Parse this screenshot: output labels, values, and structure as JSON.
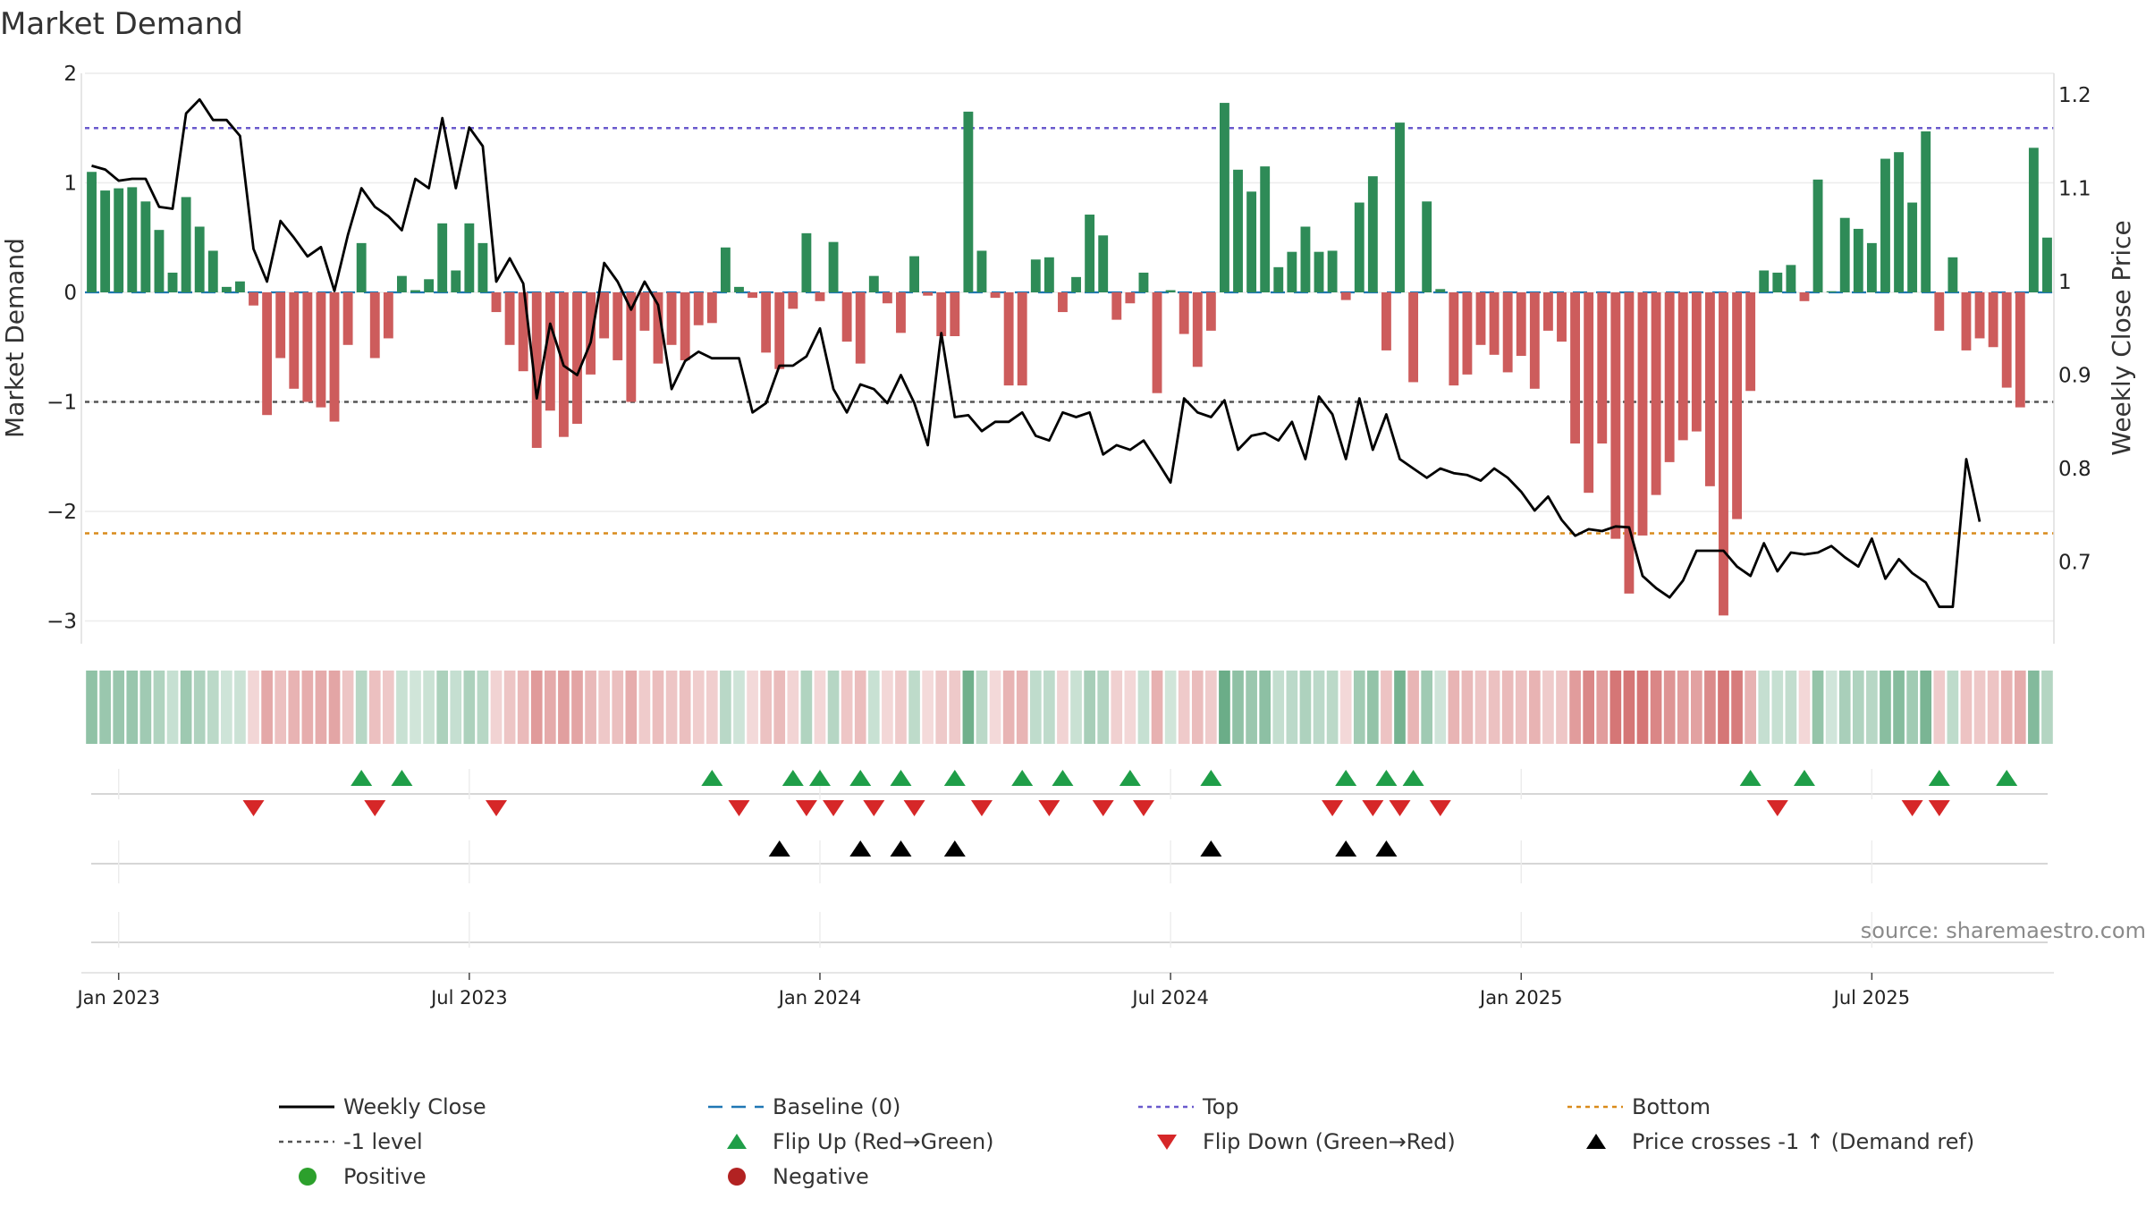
{
  "chart_data": {
    "type": "bar",
    "title": "Market Demand",
    "ylabel": "Market Demand",
    "y2label": "Weekly Close Price",
    "ylim": [
      -3.2,
      2.1
    ],
    "y2lim": [
      0.64,
      1.225
    ],
    "yticks": [
      2,
      1,
      0,
      -1,
      -2,
      -3
    ],
    "y2ticks": [
      1.2,
      1.1,
      1,
      0.9,
      0.8,
      0.7
    ],
    "ytick_labels": [
      "2",
      "1",
      "0",
      "−1",
      "−2",
      "−3"
    ],
    "y2tick_labels": [
      "1.2",
      "1.1",
      "1",
      "0.9",
      "0.8",
      "0.7"
    ],
    "xticks": [
      {
        "label": "Jan 2023",
        "week": 2
      },
      {
        "label": "Jul 2023",
        "week": 28
      },
      {
        "label": "Jan 2024",
        "week": 54
      },
      {
        "label": "Jul 2024",
        "week": 80
      },
      {
        "label": "Jan 2025",
        "week": 106
      },
      {
        "label": "Jul 2025",
        "week": 132
      }
    ],
    "levels": {
      "top": 1.5,
      "minus_one": -1,
      "bottom": -2.2,
      "baseline": 0
    },
    "demand": [
      1.1,
      0.93,
      0.95,
      0.96,
      0.83,
      0.57,
      0.18,
      0.87,
      0.6,
      0.38,
      0.05,
      0.1,
      -0.12,
      -1.12,
      -0.6,
      -0.88,
      -1.0,
      -1.05,
      -1.18,
      -0.48,
      0.45,
      -0.6,
      -0.42,
      0.15,
      0.02,
      0.12,
      0.63,
      0.2,
      0.63,
      0.45,
      -0.18,
      -0.48,
      -0.72,
      -1.42,
      -1.08,
      -1.32,
      -1.2,
      -0.75,
      -0.42,
      -0.62,
      -1.0,
      -0.35,
      -0.65,
      -0.48,
      -0.62,
      -0.3,
      -0.28,
      0.41,
      0.05,
      -0.05,
      -0.55,
      -0.7,
      -0.15,
      0.54,
      -0.08,
      0.46,
      -0.45,
      -0.65,
      0.15,
      -0.1,
      -0.37,
      0.33,
      -0.03,
      -0.4,
      -0.4,
      1.65,
      0.38,
      -0.05,
      -0.85,
      -0.85,
      0.3,
      0.32,
      -0.18,
      0.14,
      0.71,
      0.52,
      -0.25,
      -0.1,
      0.18,
      -0.92,
      0.02,
      -0.38,
      -0.68,
      -0.35,
      1.73,
      1.12,
      0.92,
      1.15,
      0.23,
      0.37,
      0.6,
      0.37,
      0.38,
      -0.07,
      0.82,
      1.06,
      -0.53,
      1.55,
      -0.82,
      0.83,
      0.03,
      -0.85,
      -0.75,
      -0.48,
      -0.57,
      -0.73,
      -0.58,
      -0.88,
      -0.35,
      -0.45,
      -1.38,
      -1.83,
      -1.38,
      -2.25,
      -2.75,
      -2.22,
      -1.85,
      -1.55,
      -1.35,
      -1.27,
      -1.77,
      -2.95,
      -2.07,
      -0.9,
      0.2,
      0.18,
      0.25,
      -0.08,
      1.03,
      0.01,
      0.68,
      0.58,
      0.45,
      1.22,
      1.28,
      0.82,
      1.47,
      -0.35,
      0.32,
      -0.53,
      -0.42,
      -0.5,
      -0.87,
      -1.05,
      1.32,
      0.5
    ],
    "close": [
      1.124,
      1.12,
      1.108,
      1.11,
      1.11,
      1.08,
      1.078,
      1.18,
      1.195,
      1.173,
      1.173,
      1.156,
      1.035,
      1.0,
      1.065,
      1.047,
      1.027,
      1.037,
      0.99,
      1.05,
      1.1,
      1.08,
      1.07,
      1.055,
      1.11,
      1.1,
      1.175,
      1.1,
      1.165,
      1.145,
      1.0,
      1.025,
      0.998,
      0.875,
      0.955,
      0.91,
      0.9,
      0.935,
      1.02,
      1.0,
      0.97,
      1.0,
      0.975,
      0.885,
      0.915,
      0.925,
      0.918,
      0.918,
      0.918,
      0.86,
      0.87,
      0.91,
      0.91,
      0.92,
      0.95,
      0.885,
      0.86,
      0.89,
      0.885,
      0.87,
      0.9,
      0.87,
      0.825,
      0.945,
      0.855,
      0.857,
      0.84,
      0.85,
      0.85,
      0.86,
      0.835,
      0.83,
      0.86,
      0.855,
      0.86,
      0.815,
      0.825,
      0.82,
      0.83,
      0.808,
      0.785,
      0.875,
      0.86,
      0.855,
      0.873,
      0.82,
      0.835,
      0.838,
      0.83,
      0.85,
      0.81,
      0.877,
      0.858,
      0.81,
      0.875,
      0.82,
      0.858,
      0.81,
      0.8,
      0.79,
      0.8,
      0.795,
      0.793,
      0.787,
      0.8,
      0.79,
      0.775,
      0.755,
      0.77,
      0.745,
      0.728,
      0.735,
      0.733,
      0.738,
      0.737,
      0.685,
      0.672,
      0.662,
      0.68,
      0.712,
      0.712,
      0.712,
      0.695,
      0.685,
      0.72,
      0.69,
      0.71,
      0.708,
      0.71,
      0.717,
      0.705,
      0.695,
      0.725,
      0.682,
      0.703,
      0.688,
      0.678,
      0.652,
      0.652,
      0.81,
      0.743
    ],
    "flip_up_weeks": [
      20,
      23,
      46,
      52,
      54,
      57,
      60,
      64,
      69,
      72,
      77,
      83,
      93,
      96,
      98,
      123,
      127,
      137,
      142
    ],
    "flip_down_weeks": [
      12,
      21,
      30,
      48,
      53,
      55,
      58,
      61,
      66,
      71,
      75,
      78,
      92,
      95,
      97,
      100,
      125,
      135,
      137
    ],
    "cross_weeks": [
      51,
      57,
      60,
      64,
      83,
      93,
      96
    ],
    "source": "source: sharemaestro.com",
    "legend": [
      {
        "label": "Weekly Close",
        "marker": "line",
        "color": "#000000"
      },
      {
        "label": "Baseline (0)",
        "marker": "dash",
        "color": "#1f77b4"
      },
      {
        "label": "Top",
        "marker": "dot",
        "color": "#6a5acd"
      },
      {
        "label": "Bottom",
        "marker": "dot",
        "color": "#d98b1b"
      },
      {
        "label": "-1 level",
        "marker": "dot",
        "color": "#555555"
      },
      {
        "label": "Flip Up (Red→Green)",
        "marker": "tri-up",
        "color": "#1f9e48"
      },
      {
        "label": "Flip Down (Green→Red)",
        "marker": "tri-down",
        "color": "#d62728"
      },
      {
        "label": "Price crosses -1 ↑ (Demand ref)",
        "marker": "tri-up",
        "color": "#000000"
      },
      {
        "label": "Positive",
        "marker": "circle",
        "color": "#2ca02c"
      },
      {
        "label": "Negative",
        "marker": "circle",
        "color": "#b22222"
      }
    ],
    "colors": {
      "positive": "#2e8b57",
      "negative": "#cd5c5c",
      "top": "#6a5acd",
      "bottom": "#d98b1b",
      "minus_one": "#555555",
      "baseline": "#1f77b4",
      "close": "#000000",
      "flip_up": "#1f9e48",
      "flip_down": "#d62728",
      "cross": "#000000"
    }
  }
}
